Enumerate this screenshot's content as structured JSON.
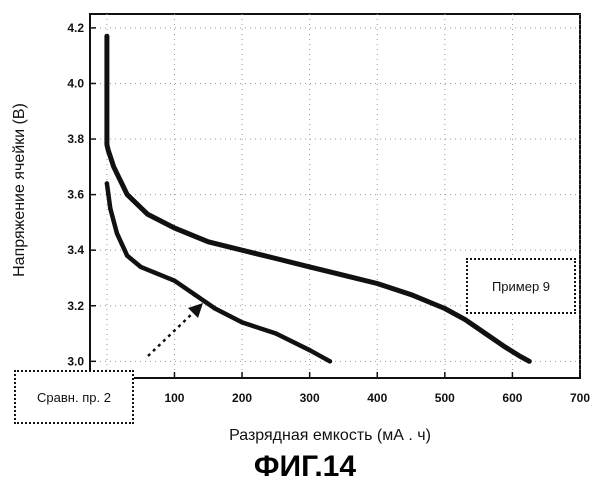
{
  "figure_caption": "ФИГ.14",
  "chart_data": {
    "type": "line",
    "xlabel": "Разрядная емкость (мА . ч)",
    "ylabel": "Напряжение ячейки (В)",
    "xlim": [
      -25,
      700
    ],
    "ylim": [
      2.94,
      4.25
    ],
    "x_ticks": [
      100,
      200,
      300,
      400,
      500,
      600,
      700
    ],
    "y_ticks": [
      3.0,
      3.2,
      3.4,
      3.6,
      3.8,
      4.0,
      4.2
    ],
    "y_tick_labels": [
      "3.0",
      "3.2",
      "3.4",
      "3.6",
      "3.8",
      "4.0",
      "4.2"
    ],
    "grid": true,
    "series": [
      {
        "name": "Пример 9",
        "x": [
          0,
          0,
          0,
          2,
          10,
          30,
          60,
          100,
          150,
          200,
          250,
          300,
          350,
          400,
          450,
          500,
          530,
          560,
          590,
          610,
          625
        ],
        "y": [
          4.17,
          3.87,
          3.78,
          3.76,
          3.7,
          3.6,
          3.53,
          3.48,
          3.43,
          3.4,
          3.37,
          3.34,
          3.31,
          3.28,
          3.24,
          3.19,
          3.15,
          3.1,
          3.05,
          3.02,
          3.0
        ]
      },
      {
        "name": "Сравн. пр. 2",
        "x": [
          0,
          5,
          15,
          30,
          50,
          70,
          100,
          130,
          160,
          200,
          250,
          300,
          330
        ],
        "y": [
          3.64,
          3.55,
          3.46,
          3.38,
          3.34,
          3.32,
          3.29,
          3.24,
          3.19,
          3.14,
          3.1,
          3.04,
          3.0
        ]
      }
    ],
    "annotations": [
      {
        "label": "Пример 9",
        "series": "Пример 9"
      },
      {
        "label": "Сравн. пр. 2",
        "series": "Сравн. пр. 2"
      }
    ]
  }
}
